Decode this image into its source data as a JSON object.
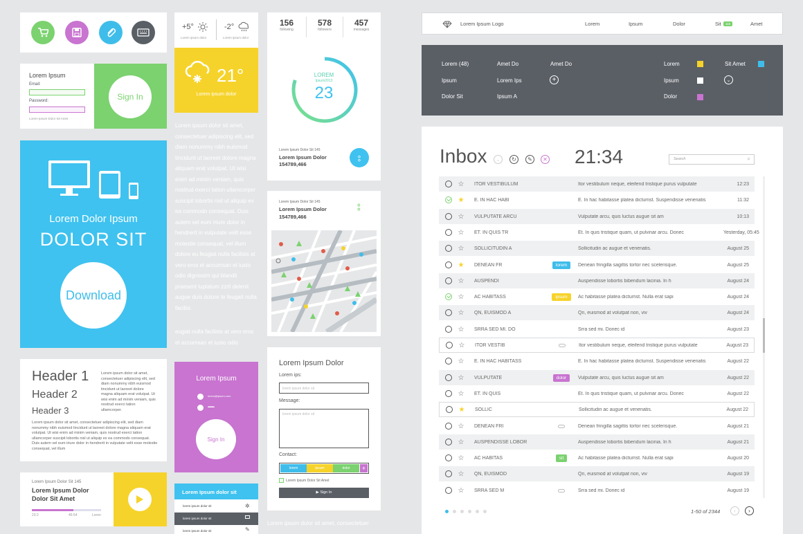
{
  "icons_card": {
    "icons": [
      {
        "name": "cart-icon",
        "color": "#7bd26f"
      },
      {
        "name": "floppy-disk-icon",
        "color": "#c874d0"
      },
      {
        "name": "paperclip-icon",
        "color": "#3fbdea"
      },
      {
        "name": "keyboard-icon",
        "color": "#5a5f66"
      }
    ]
  },
  "signin_card": {
    "title": "Lorem Ipsum",
    "email_label": "Email:",
    "password_label": "Password:",
    "footer": "Lorem Ipsum Dolor Sit Amet",
    "button": "Sign In"
  },
  "download_card": {
    "title": "Lorem Dolor Ipsum",
    "subtitle": "DOLOR SIT",
    "button": "Download",
    "bg": "#3fc2ef"
  },
  "header_card": {
    "h1": "Header 1",
    "h2": "Header 2",
    "h3": "Header 3",
    "side_text": "Lorem ipsum dolor sit amet, consectetuer adipiscing elit, sed diam nonummy nibh euismod tincidunt ut laoreet dolore magna aliquam erat volutpat. Ut wisi enim ad minim veniam, quis nostrud exerci tation ullamcorper.",
    "body_text": "Lorem ipsum dolor sit amet, consectetuer adipiscing elit, sed diam nonummy nibh euismod tincidunt ut laoreet dolore magna aliquam erat volutpat. Ut wisi enim ad minim veniam, quis nostrud exerci tation ullamcorper suscipit lobortis nisl ut aliquip ex ea commodo consequat. Duis autem vel eum iriure dolor in hendrerit in vulputate velit esse molestie consequat, vel illum"
  },
  "player_card": {
    "small": "Lorem Ipsum Dolor Sit 145",
    "title": "Lorem Ipsum Dolor Dolor Sit Amet",
    "time_start": "23:2",
    "time_end": "45:54",
    "time_label": "Loren",
    "progress": 0.6
  },
  "weather_card": {
    "temp1": "+5°",
    "temp2": "-2°",
    "caption1": "Lorem ipsum dolor",
    "caption2": "Lorem ipsum dolor",
    "main_temp": "21°",
    "main_caption": "Lorem ipsum dolor"
  },
  "lorem_column": {
    "text": "Lorem ipsum dolor sit amet, consectetuer adipiscing elit, sed diam nonummy nibh euismod tincidunt ut laoreet dolore magna aliquam erat volutpat. Ut wisi enim ad minim veniam, quis nostrud exerci tation ullamcorper suscipit lobortis nisl ut aliquip ex ea commodo consequat. Duis autem vel eum iriure dolor in hendrerit in vulputate velit esse molestie consequat, vel illum dolore eu feugiat nulla facilisis at vero eros et accumsan et iusto odio dignissim qui blandit praesent luptatum zzril delenit augue duis dolore te feugait nulla facilisi.",
    "text2": "eugiat nulla facilisis at vero eros et accumsan et iusto odio"
  },
  "pink_signin": {
    "title": "Lorem Ipsum",
    "user_placeholder": "lorem@ipsum.com",
    "password_dots": "••••••••••••",
    "button": "Sign In"
  },
  "menu_card": {
    "header": "Lorem Ipsum dolor sit",
    "items": [
      "lorem ipsum dolor sit",
      "lorem ipsum dolor sit",
      "lorem ipsum dolor sit"
    ]
  },
  "stats_card": {
    "stats": [
      {
        "value": "156",
        "label": "following"
      },
      {
        "value": "578",
        "label": "followers"
      },
      {
        "value": "457",
        "label": "messages"
      }
    ],
    "ring_label": "LOREM",
    "ring_sub": "Ipsum2013",
    "ring_value": "23",
    "ring_fraction": 0.8,
    "footer_small": "Lorem Ipsum Dolor Sit 145",
    "footer_title": "Lorem Ipsum Dolor",
    "footer_value": "154789,466"
  },
  "map_card": {
    "small": "Lorem Ipsum Dolor Sit 145",
    "title": "Lorem Ipsum Dolor",
    "value": "154789,466"
  },
  "form_card": {
    "title": "Lorem Ipsum Dolor",
    "field1_label": "Lorem ips:",
    "field1_placeholder": "lorem ipsum dolor sit",
    "message_label": "Message:",
    "message_placeholder": "lorem ipsum dolor sit",
    "contact_label": "Contact:",
    "tags": [
      "lorem",
      "ipsum",
      "dolor"
    ],
    "checkbox_label": "Lorem Ipsum Dolor Sit Amet",
    "submit": "Sign In"
  },
  "bottom_text": "Lorem ipsum dolor sit amet, consectetuer",
  "navbar": {
    "logo": "Lorem Ipsum Logo",
    "items": [
      "Lorem",
      "Ipsum",
      "Dolor",
      "Sit",
      "Amet"
    ],
    "badge": "115"
  },
  "dark_menu": {
    "col1": [
      "Lorem (48)",
      "Ipsum",
      "Dolor Sit"
    ],
    "col2": [
      "Amet Do",
      "Lorem Ips",
      "Ipsum A"
    ],
    "col3": "Amet Do",
    "legend": [
      {
        "label": "Lorem",
        "color": "#f6d32a"
      },
      {
        "label": "Ipsum",
        "color": "#ffffff"
      },
      {
        "label": "Dolor",
        "color": "#c874d0"
      },
      {
        "label": "Sit Amet",
        "color": "#3fbdea"
      }
    ]
  },
  "inbox": {
    "title": "Inbox",
    "time": "21:34",
    "search_placeholder": "Search",
    "pagination": "1-50 of 2344",
    "rows": [
      {
        "from": "ITOR VESTIBULUM",
        "subject": "Itor vestibulum neque, eleifend tristique purus vulputate",
        "date": "12:23",
        "checked": false,
        "star": false,
        "tag": "",
        "tagcolor": "",
        "attach": false
      },
      {
        "from": "E. IN HAC HABI",
        "subject": "E. In hac habitasse platea dictumst. Suspendisse venenatis",
        "date": "11:32",
        "checked": true,
        "star": true,
        "tag": "",
        "tagcolor": "",
        "attach": false
      },
      {
        "from": "VULPUTATE ARCU",
        "subject": "Vulputate arcu, quis luctus augue sit am",
        "date": "10:13",
        "checked": false,
        "star": false,
        "tag": "",
        "tagcolor": "",
        "attach": false
      },
      {
        "from": "ET. IN QUIS TR",
        "subject": "Et. In quis tristique quam, ut pulvinar arcu. Donec",
        "date": "Yesterday, 05:45",
        "checked": false,
        "star": false,
        "tag": "",
        "tagcolor": "",
        "attach": false
      },
      {
        "from": "SOLLICITUDIN A",
        "subject": "Sollicitudin ac augue et venenatis.",
        "date": "August 25",
        "checked": false,
        "star": false,
        "tag": "",
        "tagcolor": "",
        "attach": false
      },
      {
        "from": "DENEAN FR",
        "subject": "Denean fringilla sagittis tortor nec scelerisque.",
        "date": "August 25",
        "checked": false,
        "star": true,
        "tag": "lorem",
        "tagcolor": "#3fbdea",
        "attach": false
      },
      {
        "from": "AUSPENDI",
        "subject": "Auspendisse lobortis bibendum lacinia. In h",
        "date": "August 24",
        "checked": false,
        "star": false,
        "tag": "",
        "tagcolor": "",
        "attach": false
      },
      {
        "from": "AC HABITASS",
        "subject": "Ac habitasse platea dictumst. Nulla erat sapi",
        "date": "August 24",
        "checked": true,
        "star": false,
        "tag": "ipsum",
        "tagcolor": "#f6d32a",
        "attach": false
      },
      {
        "from": "QN, EUISMOD A",
        "subject": "Qn, euismod at volutpat non, viv",
        "date": "August 24",
        "checked": false,
        "star": false,
        "tag": "",
        "tagcolor": "",
        "attach": false
      },
      {
        "from": "SRRA SED MI. DO",
        "subject": "Srra sed mi. Donec id",
        "date": "August 23",
        "checked": false,
        "star": false,
        "tag": "",
        "tagcolor": "",
        "attach": false
      },
      {
        "from": "ITOR VESTIB",
        "subject": "Itor vestibulum neque, eleifend tristique purus vulputate",
        "date": "August 23",
        "checked": false,
        "star": false,
        "tag": "",
        "tagcolor": "",
        "attach": true
      },
      {
        "from": "E. IN HAC HABITASS",
        "subject": "E. In hac habitasse platea dictumst. Suspendisse venenatis",
        "date": "August 22",
        "checked": false,
        "star": false,
        "tag": "",
        "tagcolor": "",
        "attach": false
      },
      {
        "from": "VULPUTATE",
        "subject": "Vulputate arcu, quis luctus augue sit am",
        "date": "August 22",
        "checked": false,
        "star": false,
        "tag": "dolor",
        "tagcolor": "#c874d0",
        "attach": false
      },
      {
        "from": "ET. IN QUIS",
        "subject": "Et. In quis tristique quam, ut pulvinar arcu. Donec",
        "date": "August 22",
        "checked": false,
        "star": false,
        "tag": "",
        "tagcolor": "",
        "attach": false
      },
      {
        "from": "SOLLIC",
        "subject": "Sollicitudin ac augue et venenatis.",
        "date": "August 22",
        "checked": false,
        "star": true,
        "tag": "",
        "tagcolor": "",
        "attach": false
      },
      {
        "from": "DENEAN FRI",
        "subject": "Denean fringilla sagittis tortor nec scelerisque.",
        "date": "August 21",
        "checked": false,
        "star": false,
        "tag": "",
        "tagcolor": "",
        "attach": true
      },
      {
        "from": "AUSPENDISSE LOBOR",
        "subject": "Auspendisse lobortis bibendum lacinia. In h",
        "date": "August 21",
        "checked": false,
        "star": false,
        "tag": "",
        "tagcolor": "",
        "attach": false
      },
      {
        "from": "AC HABITAS",
        "subject": "Ac habitasse platea dictumst. Nulla erat sapi",
        "date": "August 20",
        "checked": false,
        "star": false,
        "tag": "sit",
        "tagcolor": "#7bd26f",
        "attach": false
      },
      {
        "from": "QN, EUISMOD",
        "subject": "Qn, euismod at volutpat non, viv",
        "date": "August 19",
        "checked": false,
        "star": false,
        "tag": "",
        "tagcolor": "",
        "attach": false
      },
      {
        "from": "SRRA SED M",
        "subject": "Srra sed mi. Donec id",
        "date": "August 19",
        "checked": false,
        "star": false,
        "tag": "",
        "tagcolor": "",
        "attach": true
      }
    ]
  }
}
